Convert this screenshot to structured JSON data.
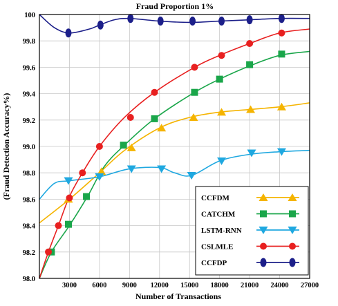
{
  "chart_data": {
    "type": "line",
    "title": "Fraud Proportion 1%",
    "xlabel": "Number of Transactions",
    "ylabel": "(Fraud Detection Accuracy%)",
    "xlim": [
      0,
      27000
    ],
    "ylim": [
      98.0,
      100.0
    ],
    "xticks": [
      3000,
      6000,
      9000,
      12000,
      15000,
      18000,
      21000,
      24000,
      27000
    ],
    "xtick_labels": [
      "3000",
      "6000",
      "9000",
      "12000",
      "15000",
      "18000",
      "21000",
      "24000",
      "27000"
    ],
    "yticks": [
      98.0,
      98.2,
      98.4,
      98.6,
      98.8,
      99.0,
      99.2,
      99.4,
      99.6,
      99.8,
      100.0
    ],
    "ytick_labels": [
      "98.0",
      "98.2",
      "98.4",
      "98.6",
      "98.8",
      "99.0",
      "99.2",
      "99.4",
      "99.6",
      "99.8",
      "100"
    ],
    "legend_position": "bottom-right",
    "series": [
      {
        "name": "CCFDM",
        "color": "#f5b400",
        "marker": "triangle-up",
        "curve": [
          [
            0,
            98.42
          ],
          [
            3000,
            98.6
          ],
          [
            6000,
            98.8
          ],
          [
            8500,
            98.97
          ],
          [
            12000,
            99.14
          ],
          [
            15000,
            99.22
          ],
          [
            18000,
            99.26
          ],
          [
            21000,
            99.28
          ],
          [
            24000,
            99.3
          ],
          [
            27000,
            99.33
          ]
        ],
        "points": [
          [
            2900,
            98.6
          ],
          [
            6200,
            98.81
          ],
          [
            9200,
            98.99
          ],
          [
            12200,
            99.14
          ],
          [
            15400,
            99.22
          ],
          [
            18200,
            99.26
          ],
          [
            21100,
            99.28
          ],
          [
            24200,
            99.3
          ]
        ]
      },
      {
        "name": "CATCHM",
        "color": "#1aa64a",
        "marker": "square",
        "curve": [
          [
            0,
            98.0
          ],
          [
            1200,
            98.2
          ],
          [
            3000,
            98.4
          ],
          [
            4800,
            98.62
          ],
          [
            6500,
            98.85
          ],
          [
            8500,
            99.01
          ],
          [
            11500,
            99.21
          ],
          [
            15500,
            99.41
          ],
          [
            18000,
            99.51
          ],
          [
            21000,
            99.61
          ],
          [
            24000,
            99.69
          ],
          [
            27000,
            99.72
          ]
        ],
        "points": [
          [
            1200,
            98.2
          ],
          [
            2900,
            98.41
          ],
          [
            4700,
            98.62
          ],
          [
            8400,
            99.01
          ],
          [
            11500,
            99.21
          ],
          [
            15500,
            99.41
          ],
          [
            18000,
            99.51
          ],
          [
            21000,
            99.62
          ],
          [
            24200,
            99.7
          ]
        ]
      },
      {
        "name": "LSTM-RNN",
        "color": "#1fa8e0",
        "marker": "triangle-down",
        "curve": [
          [
            0,
            98.6
          ],
          [
            1500,
            98.72
          ],
          [
            3000,
            98.74
          ],
          [
            6000,
            98.77
          ],
          [
            9000,
            98.83
          ],
          [
            12000,
            98.84
          ],
          [
            13500,
            98.8
          ],
          [
            15200,
            98.78
          ],
          [
            18000,
            98.89
          ],
          [
            21000,
            98.94
          ],
          [
            24000,
            98.96
          ],
          [
            27000,
            98.97
          ]
        ],
        "points": [
          [
            2900,
            98.74
          ],
          [
            6000,
            98.77
          ],
          [
            9200,
            98.83
          ],
          [
            12200,
            98.83
          ],
          [
            15200,
            98.78
          ],
          [
            18200,
            98.89
          ],
          [
            21200,
            98.95
          ],
          [
            24200,
            98.96
          ]
        ]
      },
      {
        "name": "CSLMLE",
        "color": "#e82020",
        "marker": "circle",
        "curve": [
          [
            0,
            98.0
          ],
          [
            900,
            98.2
          ],
          [
            1900,
            98.4
          ],
          [
            3000,
            98.62
          ],
          [
            4300,
            98.8
          ],
          [
            6000,
            99.0
          ],
          [
            8500,
            99.22
          ],
          [
            11500,
            99.41
          ],
          [
            15500,
            99.6
          ],
          [
            18000,
            99.69
          ],
          [
            21000,
            99.78
          ],
          [
            24000,
            99.86
          ],
          [
            27000,
            99.89
          ]
        ],
        "points": [
          [
            900,
            98.2
          ],
          [
            1900,
            98.4
          ],
          [
            3000,
            98.61
          ],
          [
            4300,
            98.8
          ],
          [
            6000,
            99.0
          ],
          [
            9100,
            99.22
          ],
          [
            11500,
            99.41
          ],
          [
            15500,
            99.6
          ],
          [
            18200,
            99.69
          ],
          [
            21000,
            99.78
          ],
          [
            24200,
            99.86
          ]
        ]
      },
      {
        "name": "CCFDP",
        "color": "#1c1f8a",
        "marker": "ellipse",
        "curve": [
          [
            0,
            100.0
          ],
          [
            1500,
            99.9
          ],
          [
            3000,
            99.86
          ],
          [
            5000,
            99.89
          ],
          [
            6000,
            99.92
          ],
          [
            7500,
            99.96
          ],
          [
            9000,
            99.97
          ],
          [
            12000,
            99.95
          ],
          [
            15000,
            99.94
          ],
          [
            18000,
            99.95
          ],
          [
            21000,
            99.96
          ],
          [
            24000,
            99.97
          ],
          [
            27000,
            99.97
          ]
        ],
        "points": [
          [
            2900,
            99.86
          ],
          [
            6100,
            99.92
          ],
          [
            9100,
            99.97
          ],
          [
            12100,
            99.95
          ],
          [
            15300,
            99.95
          ],
          [
            18200,
            99.95
          ],
          [
            21000,
            99.96
          ],
          [
            24200,
            99.97
          ]
        ]
      }
    ]
  }
}
